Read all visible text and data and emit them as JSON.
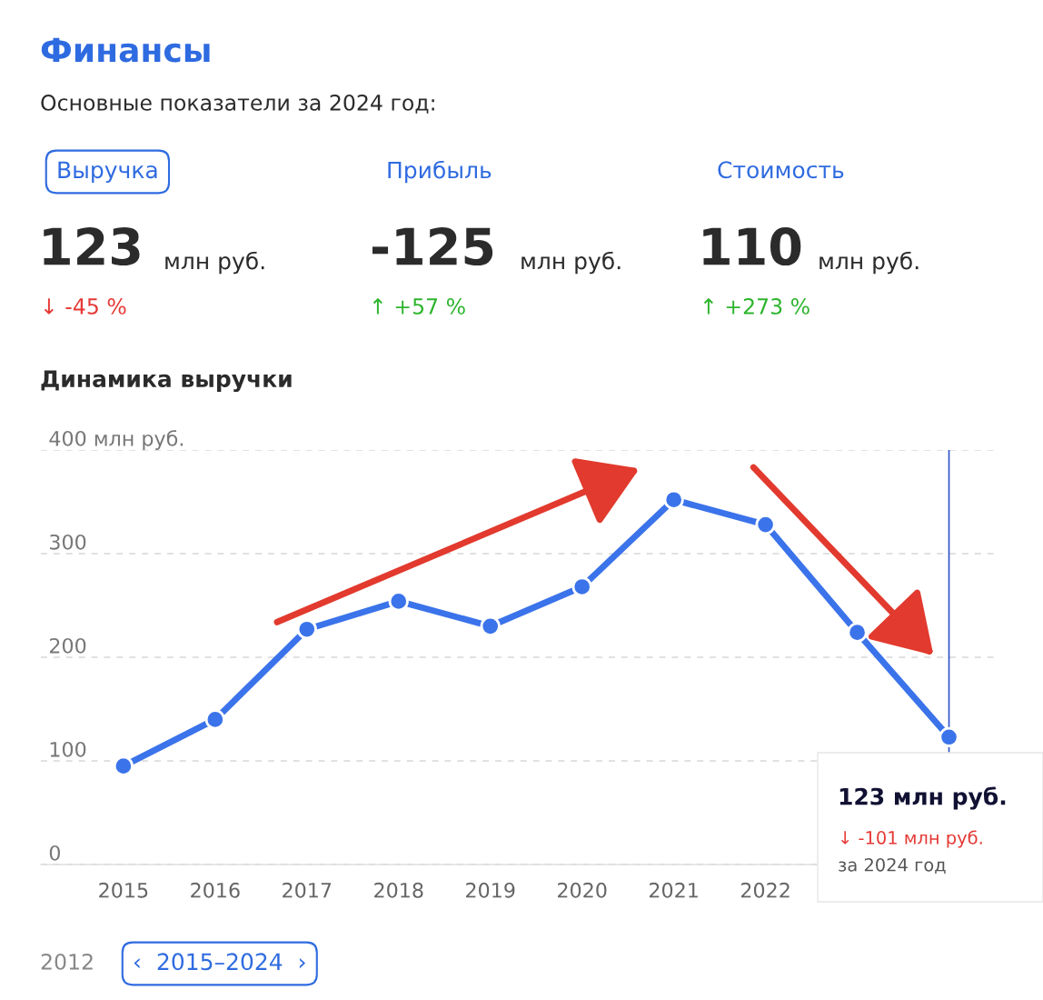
{
  "chart_data": {
    "type": "line",
    "title": "Финансы",
    "subtitle": "Основные показатели за 2024 год:",
    "x": [
      2015,
      2016,
      2017,
      2018,
      2019,
      2020,
      2021,
      2022,
      2023,
      2024
    ],
    "series": [
      {
        "color": "#3b73ea",
        "values": [
          95,
          140,
          227,
          254,
          230,
          268,
          352,
          328,
          224,
          123
        ]
      }
    ],
    "xlim": [
      2014.1,
      2024.5
    ],
    "xticks": [
      2015,
      2016,
      2017,
      2018,
      2019,
      2020,
      2021,
      2022
    ],
    "ylim": [
      0,
      400
    ],
    "yticks": [
      0,
      100,
      200,
      300,
      {
        "value": 400,
        "label": "400 млн руб."
      }
    ],
    "grid": "y",
    "marker": "circle",
    "line_style": "solid",
    "legend": false,
    "ref_lines": [
      {
        "axis": "x",
        "value": 2024,
        "color": "#2f55c8"
      }
    ],
    "annotations": [
      "Выручка",
      "Прибыль",
      "Стоимость",
      "123",
      "млн руб.",
      "-125",
      "млн руб.",
      "110",
      "млн руб.",
      "↓ -45 %",
      "↑ +57 %",
      "↑ +273 %",
      "Динамика выручки",
      "123 млн руб.",
      "↓ -101 млн руб.",
      "за 2024 год",
      "2012",
      "‹  2015–2024  ›"
    ]
  }
}
